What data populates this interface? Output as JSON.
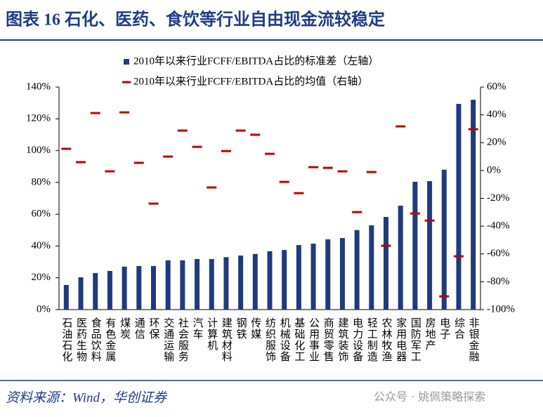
{
  "chart_data": {
    "type": "bar",
    "title": "图表 16 石化、医药、食饮等行业自由现金流较稳定",
    "source": "资料来源：Wind，华创证券",
    "watermark": "公众号 · 姚佩策略探索",
    "categories": [
      "石油石化",
      "医药生物",
      "食品饮料",
      "有色金属",
      "煤炭",
      "通信",
      "环保",
      "交通运输",
      "社会服务",
      "汽车",
      "计算机",
      "建筑材料",
      "钢铁",
      "传媒",
      "纺织服饰",
      "机械设备",
      "基础化工",
      "公用事业",
      "商贸零售",
      "建筑装饰",
      "电力设备",
      "轻工制造",
      "农林牧渔",
      "家用电器",
      "国防军工",
      "房地产",
      "电子",
      "综合",
      "非银金融"
    ],
    "series": [
      {
        "name": "2010年以来行业FCFF/EBITDA占比的标准差（左轴）",
        "color": "#203a7c",
        "mark": "bar",
        "values": [
          15.5,
          20.3,
          23,
          24.3,
          27,
          27.4,
          27.4,
          31,
          31,
          31.8,
          31.8,
          33,
          34,
          35,
          36.7,
          37.5,
          40.6,
          41.5,
          44.2,
          45,
          50,
          53,
          58.3,
          65.4,
          80.4,
          80.8,
          88,
          129.4,
          132
        ]
      },
      {
        "name": "2010年以来行业FCFF/EBITDA占比的均值（右轴）",
        "color": "#c00000",
        "mark": "dash",
        "axis": "y2",
        "values": [
          15.6,
          6,
          41.3,
          -0.6,
          41.8,
          5.5,
          -23.8,
          10,
          28.7,
          17,
          -12.2,
          14,
          28.7,
          25.7,
          12,
          -8.2,
          -16.3,
          2.4,
          1.9,
          -0.6,
          -29.9,
          -1.1,
          -54.1,
          31.7,
          -30.9,
          -36,
          -90.5,
          -61.7,
          29.7
        ]
      }
    ],
    "ylim": [
      0,
      140
    ],
    "yticks": [
      {
        "value": 0,
        "label": "0%"
      },
      {
        "value": 20,
        "label": "20%"
      },
      {
        "value": 40,
        "label": "40%"
      },
      {
        "value": 60,
        "label": "60%"
      },
      {
        "value": 80,
        "label": "80%"
      },
      {
        "value": 100,
        "label": "100%"
      },
      {
        "value": 120,
        "label": "120%"
      },
      {
        "value": 140,
        "label": "140%"
      }
    ],
    "y2lim": [
      -100,
      60
    ],
    "y2ticks": [
      {
        "value": -100,
        "label": "-100%"
      },
      {
        "value": -80,
        "label": "-80%"
      },
      {
        "value": -60,
        "label": "-60%"
      },
      {
        "value": -40,
        "label": "-40%"
      },
      {
        "value": -20,
        "label": "-20%"
      },
      {
        "value": 0,
        "label": "0%"
      },
      {
        "value": 20,
        "label": "20%"
      },
      {
        "value": 40,
        "label": "40%"
      },
      {
        "value": 60,
        "label": "60%"
      }
    ]
  }
}
